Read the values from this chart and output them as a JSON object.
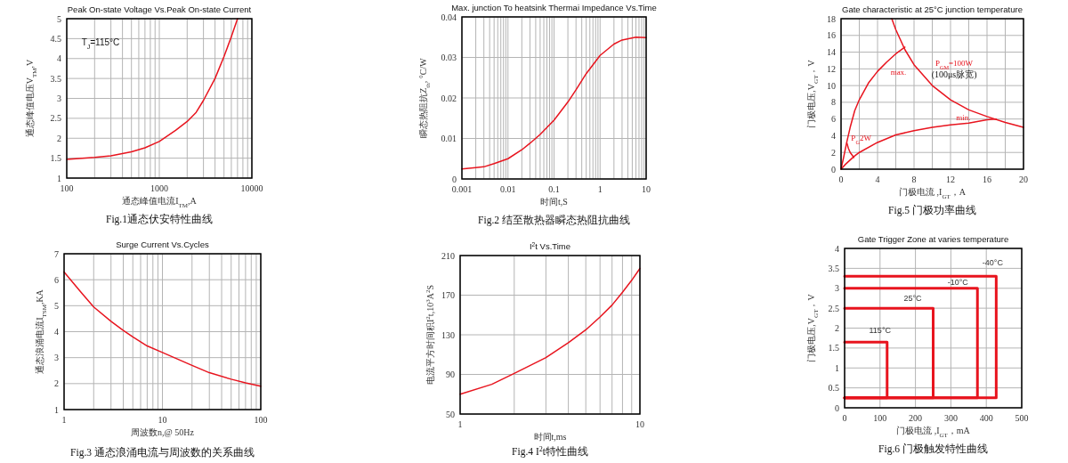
{
  "chart_data": [
    {
      "type": "line",
      "title": "Peak On-state Voltage Vs.Peak On-state Current",
      "xlabel": "通态峰值电流I$_{TM}$,A",
      "ylabel": "通态峰值电压V$_{TM}$,V",
      "annotations": [
        "Fig.1通态伏安特性曲线",
        "T$_{J}$=115°C"
      ],
      "log": "x",
      "grid": true,
      "xlim": [
        100,
        10000
      ],
      "ylim": [
        1,
        5
      ],
      "xticks": [
        100,
        1000,
        10000
      ],
      "yticks": [
        1,
        1.5,
        2,
        2.5,
        3,
        3.5,
        4,
        4.5,
        5
      ],
      "series": [
        {
          "color": "#e8141e",
          "x": [
            100,
            200,
            300,
            500,
            700,
            1000,
            1500,
            2000,
            2500,
            3000,
            4000,
            5000,
            6000,
            7000
          ],
          "values": [
            1.47,
            1.52,
            1.56,
            1.66,
            1.76,
            1.92,
            2.2,
            2.42,
            2.65,
            2.95,
            3.5,
            4.05,
            4.55,
            5.0
          ]
        }
      ]
    },
    {
      "type": "line",
      "title": "Max. junction To heatsink Thermai Impedance Vs.Time",
      "xlabel": "时间t,S",
      "ylabel": "瞬态热阻抗Z$_{th}$, °C/W",
      "annotations": [
        "Fig.2 结至散热器瞬态热阻抗曲线"
      ],
      "log": "x",
      "grid": true,
      "xlim": [
        0.001,
        10
      ],
      "ylim": [
        0,
        0.04
      ],
      "xticks": [
        0.001,
        0.01,
        0.1,
        1,
        10
      ],
      "yticks": [
        0,
        0.01,
        0.02,
        0.03,
        0.04
      ],
      "series": [
        {
          "color": "#e8141e",
          "x": [
            0.001,
            0.002,
            0.003,
            0.005,
            0.01,
            0.02,
            0.03,
            0.05,
            0.1,
            0.2,
            0.3,
            0.5,
            1,
            2,
            3,
            6,
            10
          ],
          "values": [
            0.0025,
            0.0028,
            0.003,
            0.0038,
            0.005,
            0.0072,
            0.0088,
            0.011,
            0.0145,
            0.019,
            0.022,
            0.026,
            0.0305,
            0.0333,
            0.0343,
            0.035,
            0.0349
          ]
        }
      ]
    },
    {
      "type": "line",
      "title": "Gate characteristic at 25°C junction temperature",
      "xlabel": "门极电流 ,I$_{GT}$，A",
      "ylabel": "门极电压,V$_{GT}$，V",
      "annotations": [
        "Fig.5 门极功率曲线",
        "(100μs脉宽)"
      ],
      "grid": true,
      "xlim": [
        0,
        20
      ],
      "ylim": [
        0,
        18
      ],
      "xticks": [
        0,
        {
          "value": 2,
          "label": null
        },
        4,
        {
          "value": 6,
          "label": null
        },
        8,
        {
          "value": 10,
          "label": null
        },
        12,
        {
          "value": 14,
          "label": null
        },
        16,
        {
          "value": 18,
          "label": null
        },
        20
      ],
      "yticks": [
        0,
        2,
        4,
        6,
        8,
        10,
        12,
        14,
        16,
        18
      ],
      "series": [
        {
          "name": "P$_{GM}$=100W",
          "color": "#e8141e",
          "x": [
            5.56,
            6,
            7,
            8,
            10,
            12,
            14,
            16,
            18,
            20
          ],
          "values": [
            18,
            16.7,
            14.3,
            12.5,
            10,
            8.3,
            7.1,
            6.3,
            5.6,
            5
          ]
        },
        {
          "name": "max.",
          "color": "#e8141e",
          "x": [
            0,
            0.3,
            0.6,
            1,
            1.5,
            2,
            3,
            4,
            5,
            6,
            7
          ],
          "values": [
            0,
            1.5,
            3.1,
            5,
            7,
            8.3,
            10.3,
            11.7,
            12.8,
            13.8,
            14.6
          ]
        },
        {
          "name": "min.",
          "color": "#e8141e",
          "x": [
            0,
            0.5,
            1.4,
            2,
            4,
            6,
            8,
            10,
            12,
            14,
            16,
            17
          ],
          "values": [
            0,
            0.6,
            1.5,
            2,
            3.2,
            4.1,
            4.6,
            5,
            5.3,
            5.5,
            5.9,
            6
          ]
        },
        {
          "name": "P$_{G}$2W",
          "color": "#e8141e",
          "x": [
            0.65,
            0.8,
            1,
            1.2,
            1.4
          ],
          "values": [
            3.1,
            2.5,
            2,
            1.7,
            1.4
          ]
        }
      ]
    },
    {
      "type": "line",
      "title": "Surge Current Vs.Cycles",
      "xlabel": "周波数n,@ 50Hz",
      "ylabel": "通态浪涌电流I$_{TSM}$,KA",
      "annotations": [
        "Fig.3 通态浪涌电流与周波数的关系曲线"
      ],
      "log": "x",
      "grid": true,
      "xlim": [
        1,
        100
      ],
      "ylim": [
        1,
        7
      ],
      "xticks": [
        1,
        10,
        100
      ],
      "yticks": [
        1,
        2,
        3,
        4,
        5,
        6,
        7
      ],
      "series": [
        {
          "color": "#e8141e",
          "x": [
            1,
            1.5,
            2,
            3,
            4,
            5,
            7,
            10,
            20,
            30,
            50,
            70,
            100
          ],
          "values": [
            6.3,
            5.5,
            4.95,
            4.4,
            4.05,
            3.8,
            3.45,
            3.2,
            2.7,
            2.42,
            2.17,
            2.03,
            1.9
          ]
        }
      ]
    },
    {
      "type": "line",
      "title": "I$^{2}$t  Vs.Time",
      "xlabel": "时间t,ms",
      "ylabel": "电流平方时间积I$^{2}$t,10$^{3}$A$^{2}$S",
      "annotations": [
        "Fig.4 I$^{2}$t特性曲线"
      ],
      "log": "x",
      "grid": true,
      "xlim": [
        1,
        10
      ],
      "ylim": [
        50,
        210
      ],
      "xticks": [
        1,
        10
      ],
      "yticks": [
        50,
        90,
        130,
        170,
        210
      ],
      "series": [
        {
          "color": "#e8141e",
          "x": [
            1,
            1.5,
            2,
            3,
            4,
            5,
            6,
            7,
            8,
            9,
            10
          ],
          "values": [
            70,
            80,
            91,
            107,
            122,
            135,
            148,
            160,
            173,
            185,
            197
          ]
        }
      ]
    },
    {
      "type": "line",
      "title": "Gate Trigger Zone at varies temperature",
      "xlabel": "门极电流 ,I$_{GT}$，mA",
      "ylabel": "门极电压,V$_{GT}$，V",
      "annotations": [
        "Fig.6 门极触发特性曲线"
      ],
      "grid": true,
      "xlim": [
        0,
        500
      ],
      "ylim": [
        0,
        4
      ],
      "xticks": [
        0,
        100,
        200,
        300,
        400,
        500
      ],
      "yticks": [
        0,
        0.5,
        1,
        1.5,
        2,
        2.5,
        3,
        3.5,
        4
      ],
      "series": [
        {
          "name": "-40°C",
          "color": "#e8141e",
          "x": [
            0,
            428,
            428,
            0
          ],
          "values": [
            3.3,
            3.3,
            0.25,
            0.25
          ]
        },
        {
          "name": "-10°C",
          "color": "#e8141e",
          "x": [
            0,
            375,
            375,
            0
          ],
          "values": [
            3,
            3,
            0.25,
            0.25
          ]
        },
        {
          "name": "25°C",
          "color": "#e8141e",
          "x": [
            0,
            250,
            250,
            0
          ],
          "values": [
            2.5,
            2.5,
            0.25,
            0.25
          ]
        },
        {
          "name": "115°C",
          "color": "#e8141e",
          "x": [
            0,
            120,
            120,
            0
          ],
          "values": [
            1.65,
            1.65,
            0.25,
            0.25
          ]
        }
      ]
    }
  ]
}
